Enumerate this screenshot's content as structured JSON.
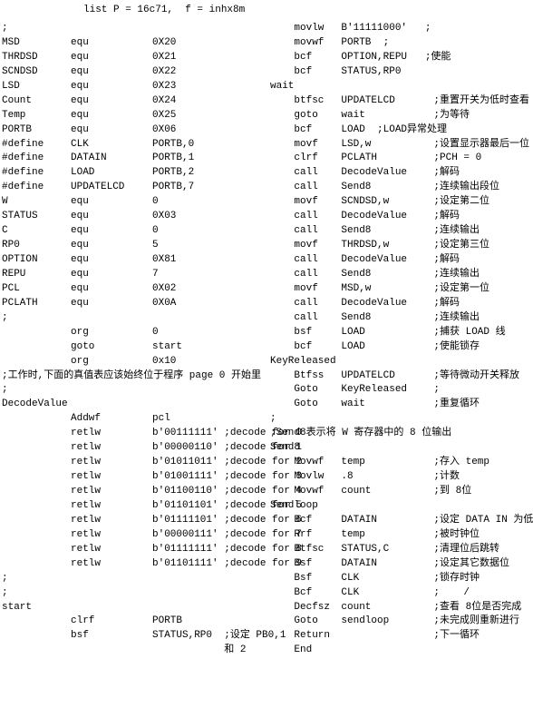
{
  "top": "list P = 16c71,  f = inhx8m",
  "left": [
    {
      "a": ";",
      "b": "",
      "c": ""
    },
    {
      "a": "MSD",
      "b": "equ",
      "c": "0X20"
    },
    {
      "a": "THRDSD",
      "b": "equ",
      "c": "0X21"
    },
    {
      "a": "SCNDSD",
      "b": "equ",
      "c": "0X22"
    },
    {
      "a": "LSD",
      "b": "equ",
      "c": "0X23"
    },
    {
      "a": "Count",
      "b": "equ",
      "c": "0X24"
    },
    {
      "a": "Temp",
      "b": "equ",
      "c": "0X25"
    },
    {
      "a": "PORTB",
      "b": "equ",
      "c": "0X06"
    },
    {
      "a": "#define",
      "b": "CLK",
      "c": "PORTB,0"
    },
    {
      "a": "#define",
      "b": "DATAIN",
      "c": "PORTB,1"
    },
    {
      "a": "#define",
      "b": "LOAD",
      "c": "PORTB,2"
    },
    {
      "a": "#define",
      "b": "UPDATELCD",
      "c": "PORTB,7"
    },
    {
      "a": "W",
      "b": "equ",
      "c": "0"
    },
    {
      "a": "STATUS",
      "b": "equ",
      "c": "0X03"
    },
    {
      "a": "C",
      "b": "equ",
      "c": "0"
    },
    {
      "a": "RP0",
      "b": "equ",
      "c": "5"
    },
    {
      "a": "OPTION",
      "b": "equ",
      "c": "0X81"
    },
    {
      "a": "REPU",
      "b": "equ",
      "c": "7"
    },
    {
      "a": "PCL",
      "b": "equ",
      "c": "0X02"
    },
    {
      "a": "PCLATH",
      "b": "equ",
      "c": "0X0A"
    },
    {
      "a": ";",
      "b": "",
      "c": ""
    },
    {
      "a": "",
      "b": "org",
      "c": "0"
    },
    {
      "a": "",
      "b": "goto",
      "c": "start"
    },
    {
      "a": "",
      "b": "org",
      "c": "0x10"
    },
    {
      "full": ";工作时,下面的真值表应该始终位于程序 page 0 开始里"
    },
    {
      "a": ";",
      "b": "",
      "c": ""
    },
    {
      "full": "DecodeValue"
    },
    {
      "a": "",
      "b": "Addwf",
      "c": "pcl"
    },
    {
      "a": "",
      "b": "retlw",
      "c": "b'00111111' ;decode for 0"
    },
    {
      "a": "",
      "b": "retlw",
      "c": "b'00000110' ;decode for 1"
    },
    {
      "a": "",
      "b": "retlw",
      "c": "b'01011011' ;decode for 2"
    },
    {
      "a": "",
      "b": "retlw",
      "c": "b'01001111' ;decode for 3"
    },
    {
      "a": "",
      "b": "retlw",
      "c": "b'01100110' ;decode for 4"
    },
    {
      "a": "",
      "b": "retlw",
      "c": "b'01101101' ;decode for 5"
    },
    {
      "a": "",
      "b": "retlw",
      "c": "b'01111101' ;decode for 6"
    },
    {
      "a": "",
      "b": "retlw",
      "c": "b'00000111' ;decode for 7"
    },
    {
      "a": "",
      "b": "retlw",
      "c": "b'01111111' ;decode for 8"
    },
    {
      "a": "",
      "b": "retlw",
      "c": "b'01101111' ;decode for 9"
    },
    {
      "a": ";",
      "b": "",
      "c": ""
    },
    {
      "a": ";",
      "b": "",
      "c": ""
    },
    {
      "full": "start"
    },
    {
      "a": "",
      "b": "clrf",
      "c": "PORTB"
    },
    {
      "a": "",
      "b": "bsf",
      "c": "STATUS,RP0  ;设定 PB0,1"
    },
    {
      "a": "",
      "b": "",
      "c": "            和 2"
    }
  ],
  "right": [
    {
      "a": "",
      "b": "movlw",
      "c": "B'11111000'   ;"
    },
    {
      "a": "",
      "b": "movwf",
      "c": "PORTB  ;"
    },
    {
      "a": "",
      "b": "bcf",
      "c": "OPTION,REPU   ;使能"
    },
    {
      "a": "",
      "b": "bcf",
      "c": "STATUS,RP0"
    },
    {
      "full": "wait"
    },
    {
      "a": "",
      "b": "btfsc",
      "c": "UPDATELCD",
      "d": ";重置开关为低时查看"
    },
    {
      "a": "",
      "b": "goto",
      "c": "wait",
      "d": ";为等待"
    },
    {
      "a": "",
      "b": "bcf",
      "c": "LOAD  ;LOAD异常处理",
      "d": ""
    },
    {
      "a": "",
      "b": "movf",
      "c": "LSD,w",
      "d": ";设置显示器最后一位"
    },
    {
      "a": "",
      "b": "clrf",
      "c": "PCLATH",
      "d": ";PCH = 0"
    },
    {
      "a": "",
      "b": "call",
      "c": "DecodeValue",
      "d": ";解码"
    },
    {
      "a": "",
      "b": "call",
      "c": "Send8",
      "d": ";连续输出段位"
    },
    {
      "a": "",
      "b": "movf",
      "c": "SCNDSD,w",
      "d": ";设定第二位"
    },
    {
      "a": "",
      "b": "call",
      "c": "DecodeValue",
      "d": ";解码"
    },
    {
      "a": "",
      "b": "call",
      "c": "Send8",
      "d": ";连续输出"
    },
    {
      "a": "",
      "b": "movf",
      "c": "THRDSD,w",
      "d": ";设定第三位"
    },
    {
      "a": "",
      "b": "call",
      "c": "DecodeValue",
      "d": ";解码"
    },
    {
      "a": "",
      "b": "call",
      "c": "Send8",
      "d": ";连续输出"
    },
    {
      "a": "",
      "b": "movf",
      "c": "MSD,w",
      "d": ";设定第一位"
    },
    {
      "a": "",
      "b": "call",
      "c": "DecodeValue",
      "d": ";解码"
    },
    {
      "a": "",
      "b": "call",
      "c": "Send8",
      "d": ";连续输出"
    },
    {
      "a": "",
      "b": "bsf",
      "c": "LOAD",
      "d": ";捕获 LOAD 线"
    },
    {
      "a": "",
      "b": "bcf",
      "c": "LOAD",
      "d": ";使能锁存"
    },
    {
      "full": "KeyReleased"
    },
    {
      "a": "",
      "b": "Btfss",
      "c": "UPDATELCD",
      "d": ";等待微动开关释放"
    },
    {
      "a": "",
      "b": "Goto",
      "c": "KeyReleased",
      "d": ";"
    },
    {
      "a": "",
      "b": "Goto",
      "c": "wait",
      "d": ";重复循环"
    },
    {
      "full": ";"
    },
    {
      "full": ";Send8表示将 W 寄存器中的 8 位输出"
    },
    {
      "full": "Send8"
    },
    {
      "a": "",
      "b": "Movwf",
      "c": "temp",
      "d": ";存入 temp"
    },
    {
      "a": "",
      "b": "Movlw",
      "c": ".8",
      "d": ";计数"
    },
    {
      "a": "",
      "b": "Movwf",
      "c": "count",
      "d": ";到 8位"
    },
    {
      "full": "Sendloop"
    },
    {
      "a": "",
      "b": "Bcf",
      "c": "DATAIN",
      "d": ";设定 DATA IN 为低"
    },
    {
      "a": "",
      "b": "Rrf",
      "c": "temp",
      "d": ";被时钟位"
    },
    {
      "a": "",
      "b": "Btfsc",
      "c": "STATUS,C",
      "d": ";清理位后跳转"
    },
    {
      "a": "",
      "b": "Bsf",
      "c": "DATAIN",
      "d": ";设定其它数据位"
    },
    {
      "a": "",
      "b": "Bsf",
      "c": "CLK",
      "d": ";锁存时钟"
    },
    {
      "a": "",
      "b": "Bcf",
      "c": "CLK",
      "d": ";    /"
    },
    {
      "a": "",
      "b": "Decfsz",
      "c": "count",
      "d": ";查看 8位是否完成"
    },
    {
      "a": "",
      "b": "Goto",
      "c": "sendloop",
      "d": ";未完成则重新进行"
    },
    {
      "a": "",
      "b": "Return",
      "c": "",
      "d": ";下一循环"
    },
    {
      "a": "",
      "b": "End",
      "c": "",
      "d": ""
    }
  ]
}
